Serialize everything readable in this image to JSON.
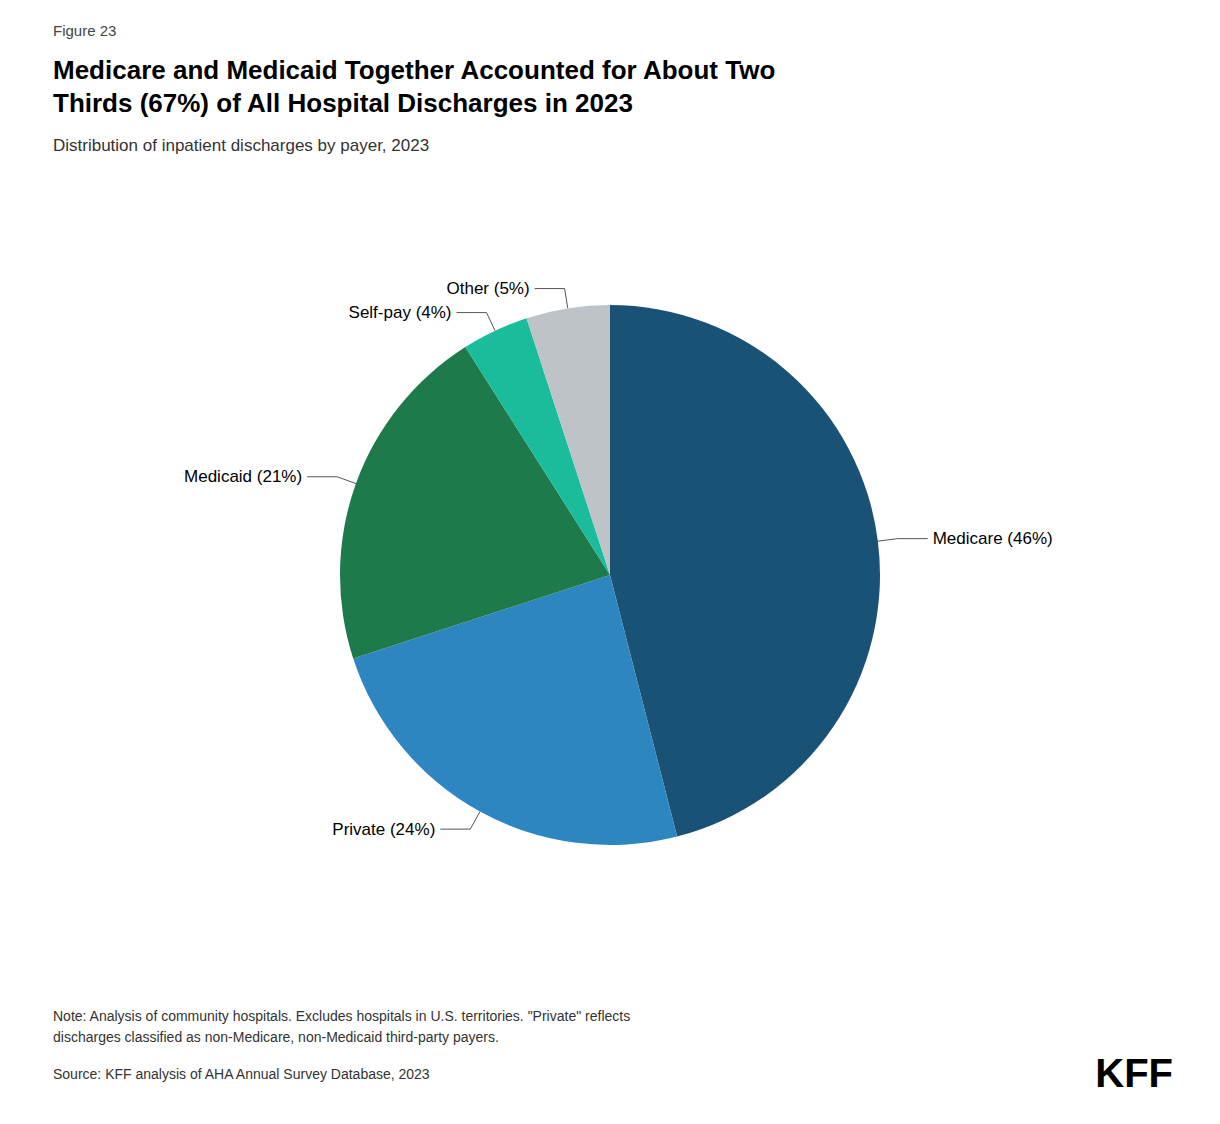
{
  "chart_data": {
    "type": "pie",
    "figure_label": "Figure 23",
    "title": "Medicare and Medicaid Together Accounted for About Two\nThirds (67%) of All Hospital Discharges in 2023",
    "subtitle": "Distribution of inpatient discharges by payer, 2023",
    "categories": [
      "Medicare",
      "Private",
      "Medicaid",
      "Self-pay",
      "Other"
    ],
    "values": [
      46,
      24,
      21,
      4,
      5
    ],
    "value_labels": [
      "Medicare (46%)",
      "Private (24%)",
      "Medicaid (21%)",
      "Self-pay (4%)",
      "Other (5%)"
    ],
    "colors": [
      "#1a5276",
      "#2e86c1",
      "#1e7a4a",
      "#1abc9c",
      "#bdc3c7"
    ],
    "notes": [
      "Note: Analysis of community hospitals. Excludes hospitals in U.S. territories. \"Private\" reflects",
      "discharges classified as non-Medicare, non-Medicaid third-party payers."
    ],
    "source": "Source: KFF analysis of AHA Annual Survey Database, 2023",
    "logo": "KFF",
    "legend": false
  }
}
